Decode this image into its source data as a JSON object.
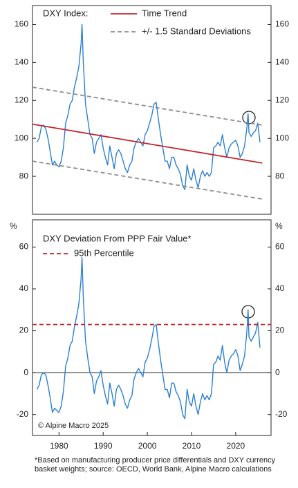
{
  "chart_data": [
    {
      "type": "line",
      "title": "DXY Index:",
      "x": [
        1975,
        1975.5,
        1976,
        1976.5,
        1977,
        1977.5,
        1978,
        1978.5,
        1979,
        1979.5,
        1980,
        1980.5,
        1981,
        1981.5,
        1982,
        1982.5,
        1983,
        1983.5,
        1984,
        1984.5,
        1985,
        1985.2,
        1985.5,
        1986,
        1986.5,
        1987,
        1987.5,
        1988,
        1988.5,
        1989,
        1989.5,
        1990,
        1990.5,
        1991,
        1991.5,
        1992,
        1992.5,
        1993,
        1993.5,
        1994,
        1994.5,
        1995,
        1995.5,
        1996,
        1996.5,
        1997,
        1997.5,
        1998,
        1998.5,
        1999,
        1999.5,
        2000,
        2000.5,
        2001,
        2001.5,
        2002,
        2002.5,
        2003,
        2003.5,
        2004,
        2004.5,
        2005,
        2005.5,
        2006,
        2006.5,
        2007,
        2007.5,
        2008,
        2008.5,
        2009,
        2009.5,
        2010,
        2010.5,
        2011,
        2011.5,
        2012,
        2012.5,
        2013,
        2013.5,
        2014,
        2014.5,
        2015,
        2015.5,
        2016,
        2016.5,
        2017,
        2017.5,
        2018,
        2018.5,
        2019,
        2019.5,
        2020,
        2020.5,
        2021,
        2021.5,
        2022,
        2022.5,
        2022.8,
        2023,
        2023.5,
        2024,
        2024.5,
        2025,
        2025.5
      ],
      "series": [
        {
          "color": "#2a7fd4",
          "values": [
            98,
            100,
            106,
            107,
            105,
            100,
            93,
            86,
            88,
            86,
            85,
            88,
            95,
            108,
            112,
            118,
            120,
            127,
            132,
            138,
            150,
            160,
            140,
            118,
            110,
            102,
            100,
            92,
            98,
            100,
            102,
            95,
            90,
            86,
            96,
            90,
            84,
            92,
            94,
            92,
            88,
            84,
            82,
            86,
            88,
            95,
            98,
            100,
            98,
            96,
            102,
            104,
            108,
            112,
            118,
            119,
            110,
            102,
            95,
            88,
            88,
            84,
            90,
            90,
            86,
            84,
            81,
            75,
            73,
            86,
            80,
            78,
            84,
            78,
            74,
            80,
            83,
            80,
            82,
            80,
            82,
            95,
            96,
            98,
            96,
            102,
            95,
            90,
            95,
            97,
            98,
            99,
            96,
            90,
            92,
            96,
            105,
            113,
            103,
            101,
            103,
            104,
            108,
            98
          ]
        },
        {
          "name": "Time Trend",
          "color": "#c0272d",
          "style": "solid",
          "x": [
            1974,
            2026
          ],
          "values": [
            107.5,
            87
          ]
        },
        {
          "name": "+/- 1.5 Standard Deviations",
          "color": "#8c8c8c",
          "style": "dashed",
          "x": [
            1974,
            2026
          ],
          "values": [
            127,
            107
          ]
        },
        {
          "color": "#8c8c8c",
          "style": "dashed",
          "x": [
            1974,
            2026
          ],
          "values": [
            88,
            68
          ]
        }
      ],
      "xlim": [
        1974,
        2028
      ],
      "ylim": [
        60,
        170
      ],
      "yticks": [
        80,
        100,
        120,
        140,
        160
      ]
    },
    {
      "type": "line",
      "title": "DXY Deviation From PPP Fair Value*",
      "y_unit": "%",
      "annotations": [
        "© Alpine Macro 2025"
      ],
      "x": [
        1975,
        1975.5,
        1976,
        1976.5,
        1977,
        1977.5,
        1978,
        1978.5,
        1979,
        1979.5,
        1980,
        1980.5,
        1981,
        1981.5,
        1982,
        1982.5,
        1983,
        1983.5,
        1984,
        1984.5,
        1985,
        1985.2,
        1985.5,
        1986,
        1986.5,
        1987,
        1987.5,
        1988,
        1988.5,
        1989,
        1989.5,
        1990,
        1990.5,
        1991,
        1991.5,
        1992,
        1992.5,
        1993,
        1993.5,
        1994,
        1994.5,
        1995,
        1995.5,
        1996,
        1996.5,
        1997,
        1997.5,
        1998,
        1998.5,
        1999,
        1999.5,
        2000,
        2000.5,
        2001,
        2001.5,
        2002,
        2002.5,
        2003,
        2003.5,
        2004,
        2004.5,
        2005,
        2005.5,
        2006,
        2006.5,
        2007,
        2007.5,
        2008,
        2008.5,
        2009,
        2009.5,
        2010,
        2010.5,
        2011,
        2011.5,
        2012,
        2012.5,
        2013,
        2013.5,
        2014,
        2014.5,
        2015,
        2015.5,
        2016,
        2016.5,
        2017,
        2017.5,
        2018,
        2018.5,
        2019,
        2019.5,
        2020,
        2020.5,
        2021,
        2021.5,
        2022,
        2022.5,
        2022.8,
        2023,
        2023.5,
        2024,
        2024.5,
        2025,
        2025.5
      ],
      "series": [
        {
          "color": "#2a7fd4",
          "values": [
            -8,
            -6,
            -1,
            0,
            -1,
            -6,
            -12,
            -19,
            -17,
            -18,
            -19,
            -16,
            -9,
            3,
            7,
            13,
            15,
            22,
            27,
            33,
            45,
            55,
            36,
            15,
            7,
            0,
            -2,
            -10,
            -4,
            -2,
            1,
            -6,
            -11,
            -15,
            -5,
            -10,
            -16,
            -8,
            -6,
            -8,
            -11,
            -15,
            -17,
            -13,
            -11,
            -3,
            0,
            2,
            0,
            -2,
            5,
            7,
            11,
            16,
            22,
            23,
            14,
            6,
            -1,
            -8,
            -8,
            -12,
            -5,
            -5,
            -9,
            -11,
            -14,
            -20,
            -22,
            -8,
            -14,
            -16,
            -10,
            -16,
            -20,
            -14,
            -10,
            -13,
            -11,
            -13,
            -10,
            4,
            5,
            8,
            6,
            13,
            5,
            0,
            6,
            8,
            9,
            11,
            8,
            1,
            4,
            8,
            19,
            30,
            17,
            15,
            17,
            19,
            24,
            12
          ]
        },
        {
          "name": "95th Percentile",
          "color": "#c0272d",
          "style": "dashed",
          "x": [
            1974,
            2028
          ],
          "values": [
            23,
            23
          ]
        }
      ],
      "xlim": [
        1974,
        2028
      ],
      "ylim": [
        -30,
        73
      ],
      "yticks": [
        -20,
        0,
        20,
        40,
        60
      ],
      "xticks": [
        1980,
        1990,
        2000,
        2010,
        2020
      ]
    }
  ],
  "footnote": "*Based on manufacturing producer price differentials and DXY currency basket weights; source: OECD, World Bank, Alpine Macro calculations"
}
